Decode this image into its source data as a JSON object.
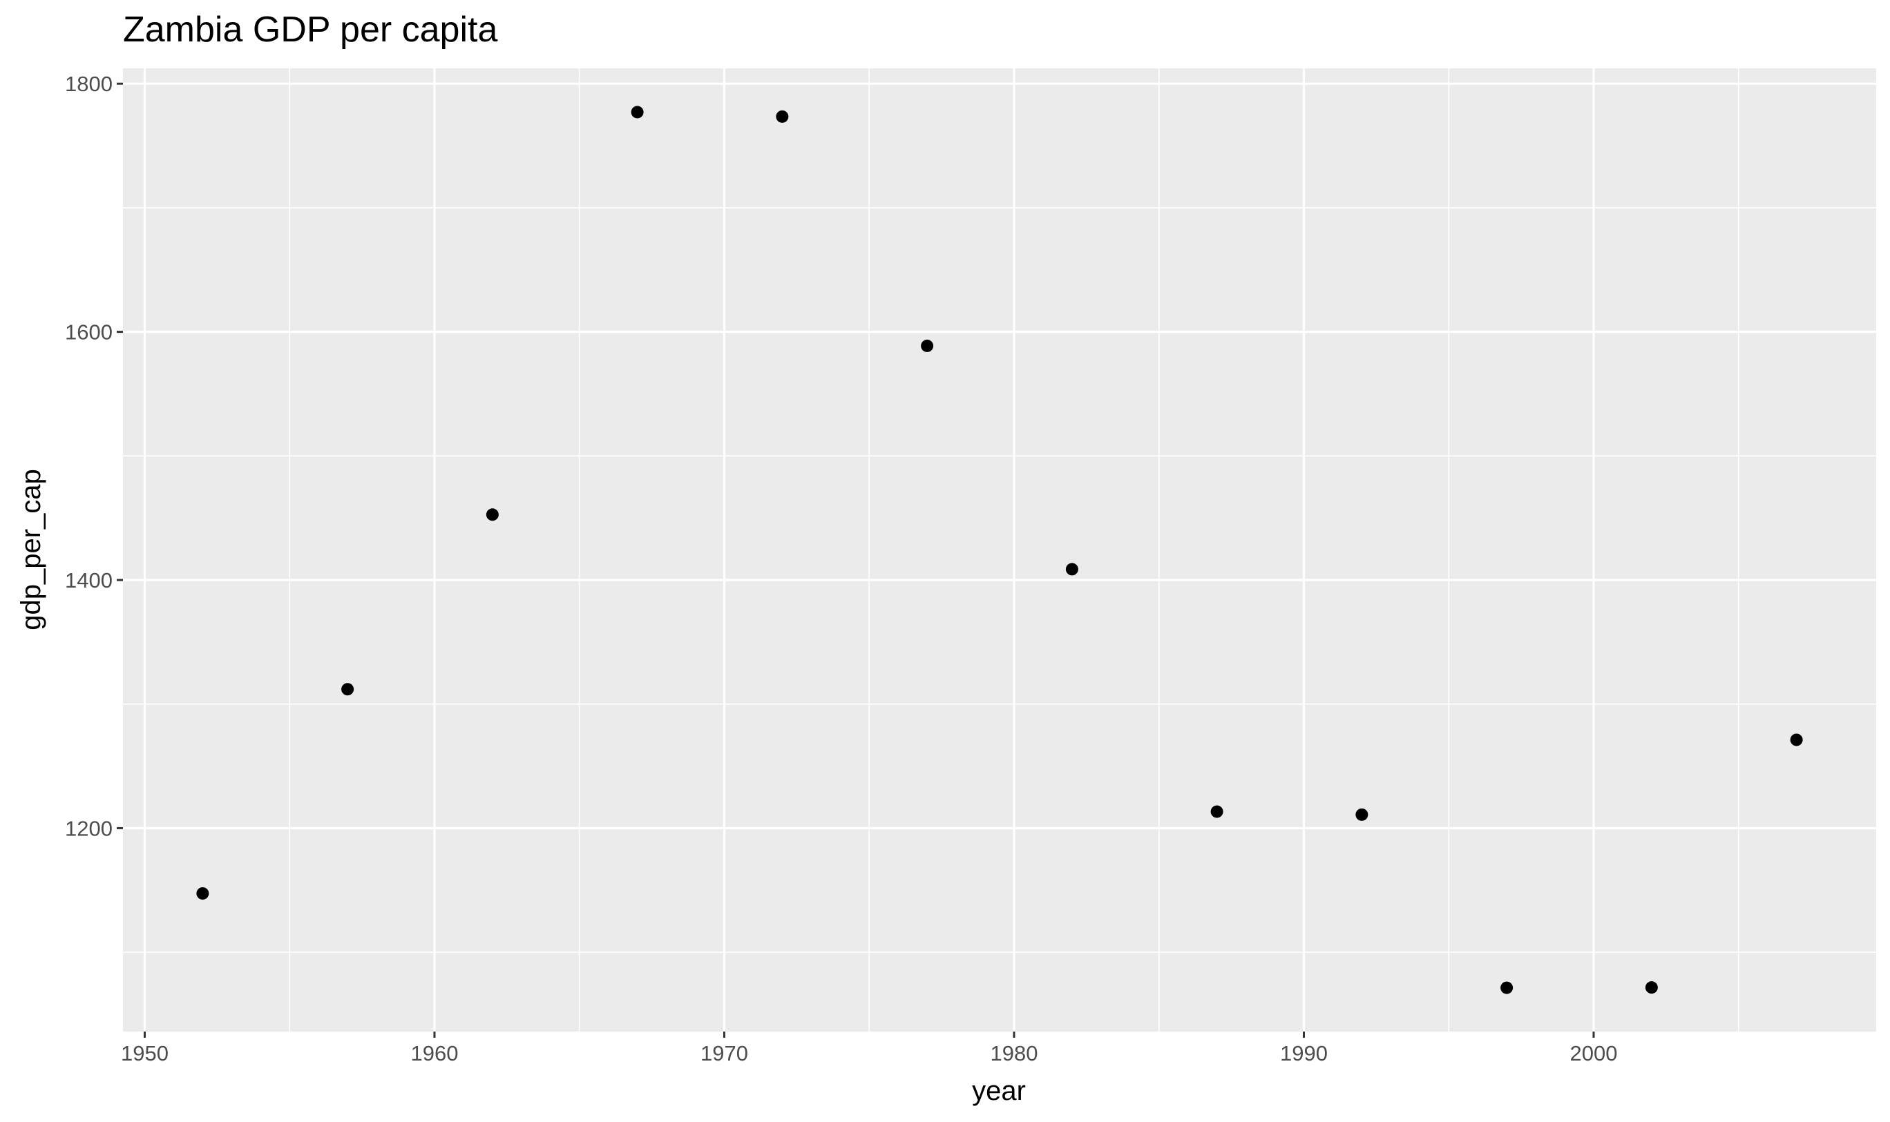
{
  "chart_data": {
    "type": "scatter",
    "title": "Zambia GDP per capita",
    "xlabel": "year",
    "ylabel": "gdp_per_cap",
    "x": [
      1952,
      1957,
      1962,
      1967,
      1972,
      1977,
      1982,
      1987,
      1992,
      1997,
      2002,
      2007
    ],
    "y": [
      1147.39,
      1311.96,
      1452.73,
      1777.08,
      1773.5,
      1588.69,
      1408.68,
      1213.32,
      1210.88,
      1071.35,
      1071.61,
      1271.21
    ],
    "xlim": [
      1949.25,
      2009.75
    ],
    "ylim": [
      1036.07,
      1812.36
    ],
    "xticks": [
      1950,
      1960,
      1970,
      1980,
      1990,
      2000
    ],
    "yticks": [
      1200,
      1400,
      1600,
      1800
    ],
    "xminor": [
      1955,
      1965,
      1975,
      1985,
      1995,
      2005
    ],
    "yminor": [
      1100,
      1300,
      1500,
      1700
    ],
    "grid": true,
    "background": "#EBEBEB",
    "point_color": "#000000"
  }
}
